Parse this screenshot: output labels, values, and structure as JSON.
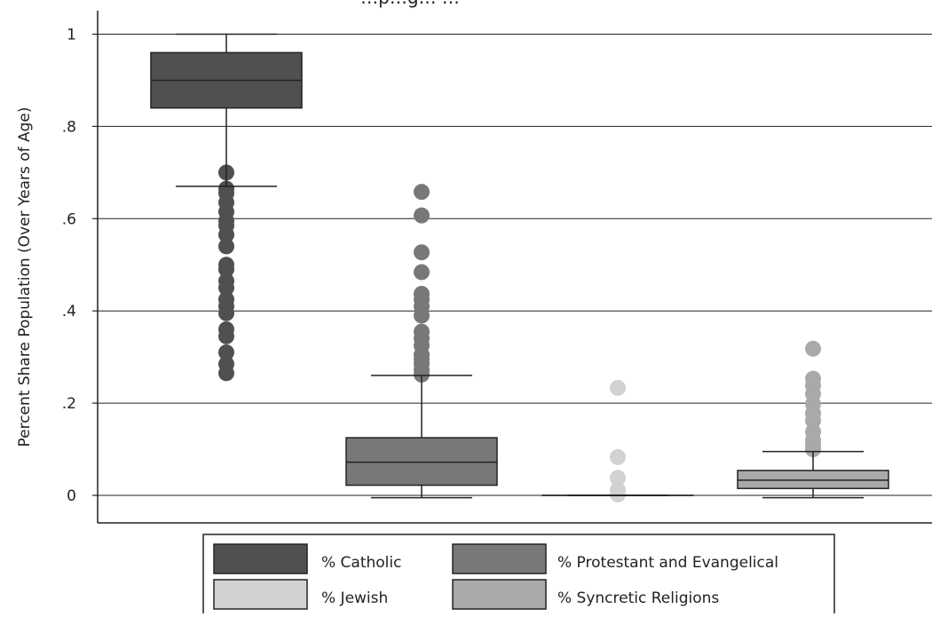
{
  "chart_data": {
    "type": "box",
    "title": "…p…g… …",
    "ylabel": "Percent Share Population (Over Years of Age)",
    "ylim": [
      -0.05,
      1.05
    ],
    "yticks": [
      {
        "value": 1.0,
        "label": "1"
      },
      {
        "value": 0.8,
        "label": ".8"
      },
      {
        "value": 0.6,
        "label": ".6"
      },
      {
        "value": 0.4,
        "label": ".4"
      },
      {
        "value": 0.2,
        "label": ".2"
      },
      {
        "value": 0.0,
        "label": "0"
      }
    ],
    "grid": true,
    "legend_position": "bottom",
    "series": [
      {
        "name": "% Catholic",
        "color": "#505050",
        "whisker_low": 0.67,
        "q1": 0.84,
        "median": 0.9,
        "q3": 0.96,
        "whisker_high": 1.0,
        "outliers": [
          0.7,
          0.665,
          0.655,
          0.635,
          0.615,
          0.595,
          0.585,
          0.565,
          0.54,
          0.5,
          0.49,
          0.465,
          0.45,
          0.425,
          0.41,
          0.395,
          0.36,
          0.345,
          0.31,
          0.285,
          0.265
        ]
      },
      {
        "name": "% Protestant and Evangelical",
        "color": "#787878",
        "whisker_low": -0.005,
        "q1": 0.022,
        "median": 0.072,
        "q3": 0.125,
        "whisker_high": 0.26,
        "outliers": [
          0.658,
          0.607,
          0.527,
          0.484,
          0.437,
          0.425,
          0.41,
          0.39,
          0.355,
          0.34,
          0.325,
          0.305,
          0.295,
          0.285,
          0.272,
          0.262
        ]
      },
      {
        "name": "% Jewish",
        "color": "#d2d2d2",
        "whisker_low": 0.0,
        "q1": 0.0,
        "median": 0.0,
        "q3": 0.0,
        "whisker_high": 0.0,
        "outliers": [
          0.233,
          0.083,
          0.038,
          0.012,
          0.002
        ]
      },
      {
        "name": "% Syncretic Religions",
        "color": "#a9a9a9",
        "whisker_low": -0.005,
        "q1": 0.015,
        "median": 0.033,
        "q3": 0.054,
        "whisker_high": 0.095,
        "outliers": [
          0.318,
          0.253,
          0.238,
          0.22,
          0.198,
          0.178,
          0.162,
          0.138,
          0.12,
          0.11,
          0.1
        ]
      }
    ]
  }
}
